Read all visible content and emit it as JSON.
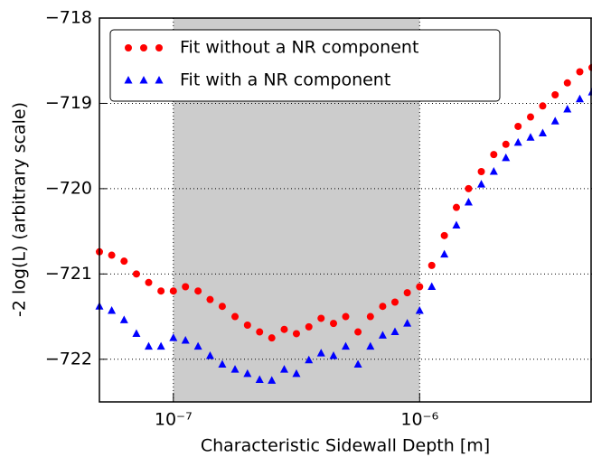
{
  "chart_data": {
    "type": "scatter",
    "x_label": "Characteristic Sidewall Depth [m]",
    "y_label": "-2 log(L) (arbitrary scale)",
    "xscale": "log",
    "grid": true,
    "legend": "upper left",
    "shade": {
      "range": [
        1e-07,
        1e-06
      ],
      "color": "#cccccc"
    },
    "xlim": [
      5.01e-08,
      5.01e-06
    ],
    "ylim": [
      -722.5,
      -718
    ],
    "xticks": [
      {
        "value": 1e-07,
        "label": "10⁻⁷"
      },
      {
        "value": 1e-06,
        "label": "10⁻⁶"
      }
    ],
    "yticks": [
      {
        "value": -718,
        "label": "−718"
      },
      {
        "value": -719,
        "label": "−719"
      },
      {
        "value": -720,
        "label": "−720"
      },
      {
        "value": -721,
        "label": "−721"
      },
      {
        "value": -722,
        "label": "−722"
      }
    ],
    "x": [
      5.01e-08,
      5.62e-08,
      6.31e-08,
      7.08e-08,
      7.94e-08,
      8.91e-08,
      1e-07,
      1.12e-07,
      1.26e-07,
      1.41e-07,
      1.58e-07,
      1.78e-07,
      2e-07,
      2.24e-07,
      2.51e-07,
      2.82e-07,
      3.16e-07,
      3.55e-07,
      3.98e-07,
      4.47e-07,
      5.01e-07,
      5.62e-07,
      6.31e-07,
      7.08e-07,
      7.94e-07,
      8.91e-07,
      1e-06,
      1.12e-06,
      1.26e-06,
      1.41e-06,
      1.58e-06,
      1.78e-06,
      2e-06,
      2.24e-06,
      2.51e-06,
      2.82e-06,
      3.16e-06,
      3.55e-06,
      3.98e-06,
      4.47e-06,
      5.01e-06
    ],
    "series": [
      {
        "name": "Fit without a NR component",
        "color": "#ff0000",
        "marker": "circle",
        "values": [
          -720.74,
          -720.78,
          -720.85,
          -721.0,
          -721.1,
          -721.2,
          -721.2,
          -721.15,
          -721.2,
          -721.3,
          -721.38,
          -721.5,
          -721.6,
          -721.68,
          -721.75,
          -721.65,
          -721.7,
          -721.62,
          -721.52,
          -721.58,
          -721.5,
          -721.68,
          -721.5,
          -721.38,
          -721.33,
          -721.22,
          -721.15,
          -720.9,
          -720.55,
          -720.22,
          -720.0,
          -719.8,
          -719.6,
          -719.48,
          -719.27,
          -719.16,
          -719.03,
          -718.9,
          -718.76,
          -718.63,
          -718.58
        ]
      },
      {
        "name": "Fit with a NR component",
        "color": "#0000ff",
        "marker": "triangle",
        "values": [
          -721.38,
          -721.43,
          -721.54,
          -721.7,
          -721.85,
          -721.85,
          -721.75,
          -721.78,
          -721.85,
          -721.96,
          -722.06,
          -722.12,
          -722.17,
          -722.24,
          -722.25,
          -722.12,
          -722.17,
          -722.01,
          -721.93,
          -721.96,
          -721.85,
          -722.06,
          -721.85,
          -721.72,
          -721.68,
          -721.58,
          -721.43,
          -721.15,
          -720.77,
          -720.43,
          -720.16,
          -719.95,
          -719.8,
          -719.64,
          -719.46,
          -719.4,
          -719.35,
          -719.21,
          -719.07,
          -718.95,
          -718.87
        ]
      }
    ]
  }
}
